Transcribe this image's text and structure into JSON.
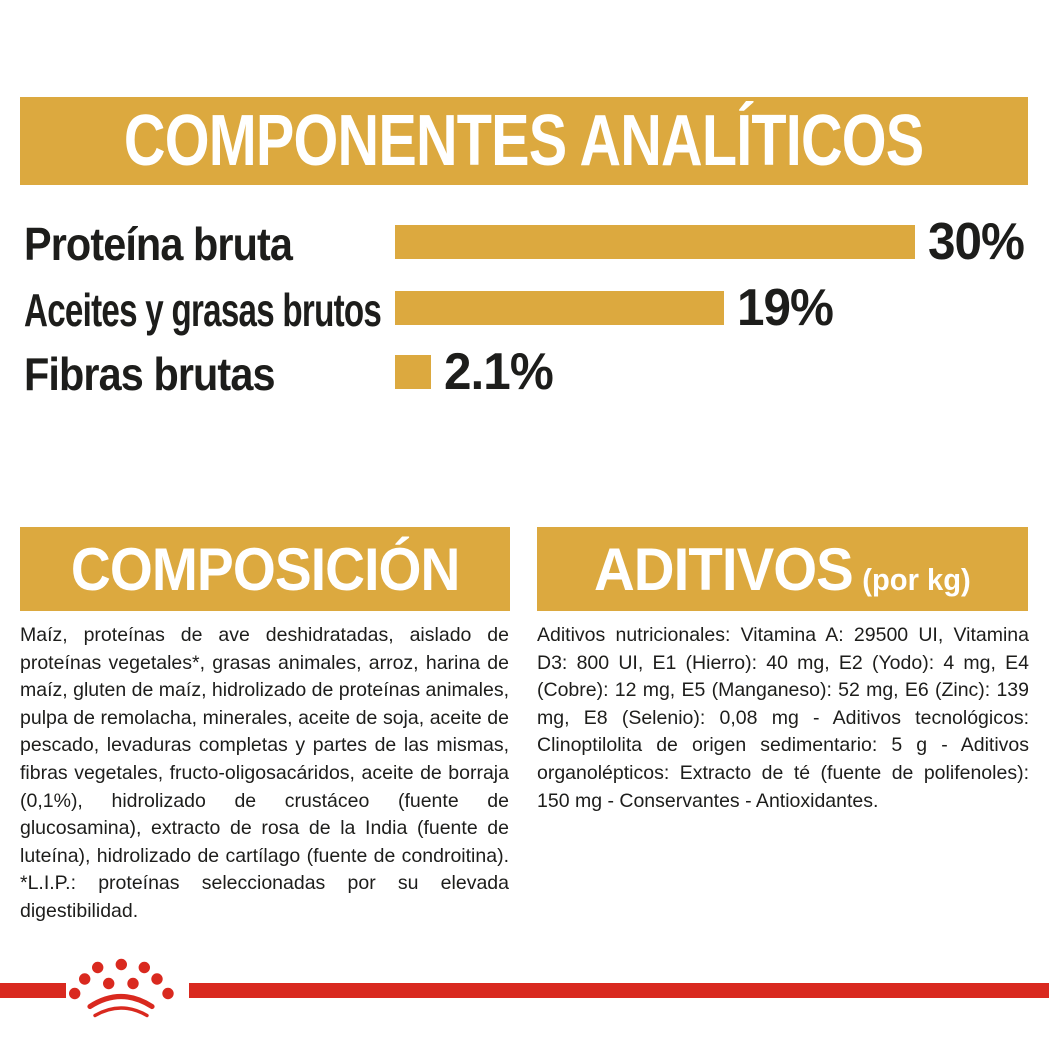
{
  "palette": {
    "gold": "#DCA93F",
    "red": "#D9291F",
    "text": "#1D1D1B",
    "background": "#FFFFFF"
  },
  "analytical": {
    "title": "COMPONENTES ANALÍTICOS"
  },
  "chart_data": {
    "type": "bar",
    "orientation": "horizontal",
    "title": "COMPONENTES ANALÍTICOS",
    "categories": [
      "Proteína bruta",
      "Aceites y grasas brutos",
      "Fibras brutas"
    ],
    "values": [
      30,
      19,
      2.1
    ],
    "value_labels": [
      "30%",
      "19%",
      "2.1%"
    ],
    "xlabel": "",
    "ylabel": "",
    "xlim": [
      0,
      30
    ],
    "bar_color": "#DCA93F",
    "grid": false,
    "legend": false
  },
  "composition": {
    "title": "COMPOSICIÓN",
    "body": "Maíz, proteínas de ave deshidratadas, aislado de proteínas vegetales*, grasas animales, arroz, harina de maíz, gluten de maíz, hidrolizado de proteínas animales, pulpa de remolacha, minerales, aceite de soja, aceite de pescado, levaduras completas y partes de las mismas, fibras vegetales, fructo-oligosacáridos, aceite de borraja (0,1%), hidrolizado de crustáceo (fuente de glucosamina), extracto de rosa de la India (fuente de luteína), hidrolizado de cartílago (fuente de condroitina). *L.I.P.: proteínas seleccionadas por su elevada digestibilidad."
  },
  "additives": {
    "title": "ADITIVOS",
    "title_suffix": "(por kg)",
    "body": "Aditivos nutricionales: Vitamina A: 29500 UI, Vitamina D3: 800 UI, E1 (Hierro): 40 mg, E2 (Yodo): 4 mg, E4 (Cobre): 12 mg, E5 (Manganeso): 52 mg, E6 (Zinc): 139 mg, E8 (Selenio): 0,08 mg - Aditivos tecnológicos: Clinoptilolita de origen sedimentario: 5 g - Aditivos organolépticos: Extracto de té (fuente de polifenoles): 150 mg - Conservantes - Antioxidantes."
  },
  "footer": {
    "logo": "royal-canin-crown"
  }
}
